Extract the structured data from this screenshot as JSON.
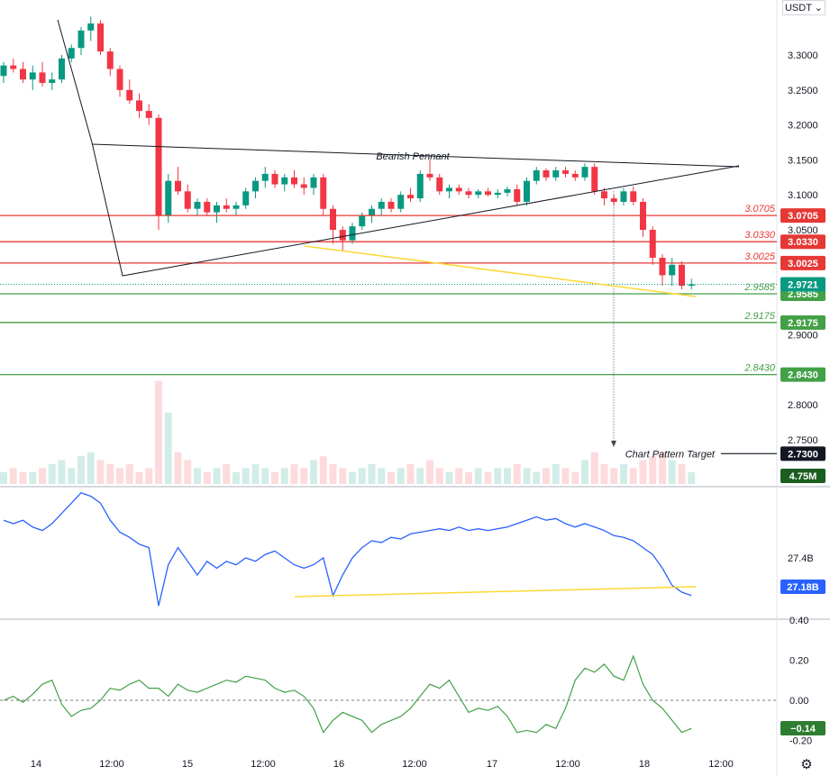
{
  "currency": "USDT ⌄",
  "settings_icon": "gear-icon",
  "chart_data": [
    {
      "type": "candlestick",
      "pane": "price",
      "ylim": [
        2.7,
        3.35
      ],
      "yticks": [
        "3.3000",
        "3.2500",
        "3.2000",
        "3.1500",
        "3.1000",
        "3.0500",
        "2.9000",
        "2.8000",
        "2.7500"
      ],
      "xticks": [
        "14",
        "12:00",
        "15",
        "12:00",
        "16",
        "12:00",
        "17",
        "12:00",
        "18",
        "12:00"
      ],
      "candles": [
        [
          3.27,
          3.29,
          3.26,
          3.285
        ],
        [
          3.285,
          3.295,
          3.275,
          3.28
        ],
        [
          3.28,
          3.29,
          3.26,
          3.265
        ],
        [
          3.265,
          3.285,
          3.25,
          3.275
        ],
        [
          3.275,
          3.29,
          3.255,
          3.26
        ],
        [
          3.26,
          3.275,
          3.25,
          3.265
        ],
        [
          3.265,
          3.3,
          3.26,
          3.295
        ],
        [
          3.295,
          3.315,
          3.29,
          3.31
        ],
        [
          3.31,
          3.34,
          3.3,
          3.335
        ],
        [
          3.335,
          3.355,
          3.32,
          3.345
        ],
        [
          3.345,
          3.35,
          3.3,
          3.305
        ],
        [
          3.305,
          3.31,
          3.27,
          3.28
        ],
        [
          3.28,
          3.285,
          3.24,
          3.25
        ],
        [
          3.25,
          3.265,
          3.23,
          3.235
        ],
        [
          3.235,
          3.245,
          3.21,
          3.22
        ],
        [
          3.22,
          3.23,
          3.2,
          3.21
        ],
        [
          3.21,
          3.215,
          3.05,
          3.07
        ],
        [
          3.07,
          3.13,
          3.06,
          3.12
        ],
        [
          3.12,
          3.14,
          3.1,
          3.105
        ],
        [
          3.105,
          3.115,
          3.075,
          3.08
        ],
        [
          3.08,
          3.095,
          3.07,
          3.09
        ],
        [
          3.09,
          3.095,
          3.07,
          3.075
        ],
        [
          3.075,
          3.09,
          3.06,
          3.085
        ],
        [
          3.085,
          3.095,
          3.075,
          3.08
        ],
        [
          3.08,
          3.09,
          3.07,
          3.085
        ],
        [
          3.085,
          3.11,
          3.08,
          3.105
        ],
        [
          3.105,
          3.125,
          3.095,
          3.12
        ],
        [
          3.12,
          3.14,
          3.11,
          3.13
        ],
        [
          3.13,
          3.135,
          3.11,
          3.115
        ],
        [
          3.115,
          3.13,
          3.105,
          3.125
        ],
        [
          3.125,
          3.135,
          3.11,
          3.115
        ],
        [
          3.115,
          3.125,
          3.1,
          3.11
        ],
        [
          3.11,
          3.13,
          3.1,
          3.125
        ],
        [
          3.125,
          3.13,
          3.07,
          3.08
        ],
        [
          3.08,
          3.085,
          3.03,
          3.05
        ],
        [
          3.05,
          3.055,
          3.02,
          3.035
        ],
        [
          3.035,
          3.06,
          3.03,
          3.055
        ],
        [
          3.055,
          3.075,
          3.05,
          3.07
        ],
        [
          3.07,
          3.085,
          3.06,
          3.08
        ],
        [
          3.08,
          3.095,
          3.07,
          3.09
        ],
        [
          3.09,
          3.095,
          3.075,
          3.08
        ],
        [
          3.08,
          3.105,
          3.075,
          3.1
        ],
        [
          3.1,
          3.11,
          3.09,
          3.095
        ],
        [
          3.095,
          3.135,
          3.09,
          3.13
        ],
        [
          3.13,
          3.15,
          3.12,
          3.125
        ],
        [
          3.125,
          3.13,
          3.1,
          3.105
        ],
        [
          3.105,
          3.115,
          3.095,
          3.11
        ],
        [
          3.11,
          3.115,
          3.1,
          3.105
        ],
        [
          3.105,
          3.11,
          3.095,
          3.1
        ],
        [
          3.1,
          3.108,
          3.095,
          3.105
        ],
        [
          3.105,
          3.11,
          3.098,
          3.1
        ],
        [
          3.1,
          3.108,
          3.095,
          3.103
        ],
        [
          3.103,
          3.112,
          3.098,
          3.108
        ],
        [
          3.108,
          3.115,
          3.085,
          3.09
        ],
        [
          3.09,
          3.125,
          3.085,
          3.12
        ],
        [
          3.12,
          3.14,
          3.115,
          3.135
        ],
        [
          3.135,
          3.138,
          3.12,
          3.125
        ],
        [
          3.125,
          3.14,
          3.12,
          3.135
        ],
        [
          3.135,
          3.14,
          3.125,
          3.13
        ],
        [
          3.13,
          3.135,
          3.12,
          3.125
        ],
        [
          3.125,
          3.145,
          3.12,
          3.14
        ],
        [
          3.14,
          3.145,
          3.1,
          3.105
        ],
        [
          3.105,
          3.11,
          3.085,
          3.095
        ],
        [
          3.095,
          3.1,
          3.085,
          3.09
        ],
        [
          3.09,
          3.11,
          3.085,
          3.105
        ],
        [
          3.105,
          3.112,
          3.085,
          3.09
        ],
        [
          3.09,
          3.095,
          3.04,
          3.05
        ],
        [
          3.05,
          3.055,
          3.0,
          3.01
        ],
        [
          3.01,
          3.015,
          2.97,
          2.985
        ],
        [
          2.985,
          3.01,
          2.97,
          3.0
        ],
        [
          3.0,
          3.005,
          2.965,
          2.97
        ],
        [
          2.97,
          2.98,
          2.965,
          2.972
        ]
      ],
      "levels": [
        {
          "value": 3.0705,
          "label": "3.0705",
          "color": "#e53935"
        },
        {
          "value": 3.033,
          "label": "3.0330",
          "color": "#e53935"
        },
        {
          "value": 3.0025,
          "label": "3.0025",
          "color": "#e53935"
        },
        {
          "value": 2.9585,
          "label": "2.9585",
          "color": "#43a047"
        },
        {
          "value": 2.9175,
          "label": "2.9175",
          "color": "#43a047"
        },
        {
          "value": 2.843,
          "label": "2.8430",
          "color": "#43a047"
        }
      ],
      "current_price": {
        "value": 2.9721,
        "label": "2.9721",
        "color": "#089981"
      },
      "target": {
        "value": 2.73,
        "label": "2.7300",
        "note": "Chart Pattern Target"
      },
      "pattern_label": "Bearish Pennant",
      "volume_label": "4.75M",
      "volume": [
        3,
        4,
        3,
        3,
        4,
        5,
        6,
        4,
        7,
        8,
        6,
        5,
        4,
        5,
        3,
        4,
        26,
        18,
        8,
        6,
        4,
        3,
        4,
        5,
        3,
        4,
        5,
        4,
        3,
        4,
        5,
        4,
        6,
        7,
        5,
        4,
        3,
        4,
        5,
        4,
        3,
        4,
        5,
        4,
        6,
        4,
        3,
        4,
        3,
        4,
        3,
        4,
        4,
        5,
        4,
        3,
        4,
        5,
        4,
        3,
        6,
        8,
        5,
        4,
        5,
        4,
        6,
        7,
        8,
        6,
        5,
        3
      ]
    },
    {
      "type": "line",
      "pane": "volume-indicator",
      "yticks": [
        "27.4B"
      ],
      "value_label": "27.18B",
      "color": "#2962ff",
      "values": [
        27.62,
        27.6,
        27.62,
        27.58,
        27.56,
        27.6,
        27.66,
        27.72,
        27.78,
        27.76,
        27.72,
        27.62,
        27.55,
        27.52,
        27.48,
        27.46,
        27.12,
        27.36,
        27.46,
        27.38,
        27.3,
        27.38,
        27.34,
        27.38,
        27.36,
        27.4,
        27.38,
        27.42,
        27.44,
        27.4,
        27.36,
        27.34,
        27.36,
        27.4,
        27.18,
        27.3,
        27.4,
        27.46,
        27.5,
        27.49,
        27.52,
        27.51,
        27.54,
        27.55,
        27.56,
        27.57,
        27.56,
        27.58,
        27.56,
        27.57,
        27.56,
        27.57,
        27.58,
        27.6,
        27.62,
        27.64,
        27.62,
        27.63,
        27.6,
        27.58,
        27.6,
        27.58,
        27.56,
        27.53,
        27.52,
        27.5,
        27.46,
        27.42,
        27.34,
        27.24,
        27.2,
        27.18
      ]
    },
    {
      "type": "line",
      "pane": "oscillator",
      "ylim": [
        -0.24,
        0.46
      ],
      "yticks": [
        "0.40",
        "0.20",
        "0.00",
        "-0.20"
      ],
      "value_label": "−0.14",
      "color": "#43a047",
      "values": [
        0.0,
        0.02,
        -0.01,
        0.03,
        0.08,
        0.1,
        -0.02,
        -0.08,
        -0.05,
        -0.04,
        0.0,
        0.06,
        0.05,
        0.08,
        0.1,
        0.06,
        0.06,
        0.02,
        0.08,
        0.05,
        0.04,
        0.06,
        0.08,
        0.1,
        0.09,
        0.12,
        0.11,
        0.1,
        0.06,
        0.04,
        0.05,
        0.02,
        -0.04,
        -0.16,
        -0.1,
        -0.06,
        -0.08,
        -0.1,
        -0.16,
        -0.12,
        -0.1,
        -0.08,
        -0.04,
        0.02,
        0.08,
        0.06,
        0.1,
        0.02,
        -0.06,
        -0.04,
        -0.05,
        -0.03,
        -0.08,
        -0.16,
        -0.15,
        -0.16,
        -0.12,
        -0.14,
        -0.04,
        0.1,
        0.16,
        0.14,
        0.18,
        0.12,
        0.1,
        0.22,
        0.08,
        0.0,
        -0.04,
        -0.1,
        -0.16,
        -0.14
      ]
    }
  ]
}
